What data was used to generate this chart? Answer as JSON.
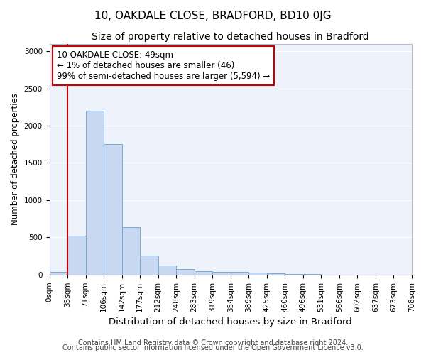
{
  "title1": "10, OAKDALE CLOSE, BRADFORD, BD10 0JG",
  "title2": "Size of property relative to detached houses in Bradford",
  "xlabel": "Distribution of detached houses by size in Bradford",
  "ylabel": "Number of detached properties",
  "bar_values": [
    35,
    525,
    2200,
    1750,
    635,
    260,
    125,
    70,
    45,
    40,
    40,
    30,
    20,
    10,
    10,
    0,
    0,
    0,
    0,
    0
  ],
  "x_tick_labels": [
    "0sqm",
    "35sqm",
    "71sqm",
    "106sqm",
    "142sqm",
    "177sqm",
    "212sqm",
    "248sqm",
    "283sqm",
    "319sqm",
    "354sqm",
    "389sqm",
    "425sqm",
    "460sqm",
    "496sqm",
    "531sqm",
    "566sqm",
    "602sqm",
    "637sqm",
    "673sqm",
    "708sqm"
  ],
  "bar_color": "#c8d8f0",
  "bar_edge_color": "#7aaad0",
  "vline_x": 1,
  "vline_color": "#cc0000",
  "annotation_text": "10 OAKDALE CLOSE: 49sqm\n← 1% of detached houses are smaller (46)\n99% of semi-detached houses are larger (5,594) →",
  "annotation_box_color": "#cc0000",
  "ylim": [
    0,
    3100
  ],
  "yticks": [
    0,
    500,
    1000,
    1500,
    2000,
    2500,
    3000
  ],
  "footer1": "Contains HM Land Registry data © Crown copyright and database right 2024.",
  "footer2": "Contains public sector information licensed under the Open Government Licence v3.0.",
  "bg_color": "#eef2fb",
  "grid_color": "#ffffff",
  "title1_fontsize": 11,
  "title2_fontsize": 10,
  "xlabel_fontsize": 9.5,
  "ylabel_fontsize": 8.5,
  "tick_fontsize": 7.5,
  "footer_fontsize": 7,
  "annot_fontsize": 8.5
}
